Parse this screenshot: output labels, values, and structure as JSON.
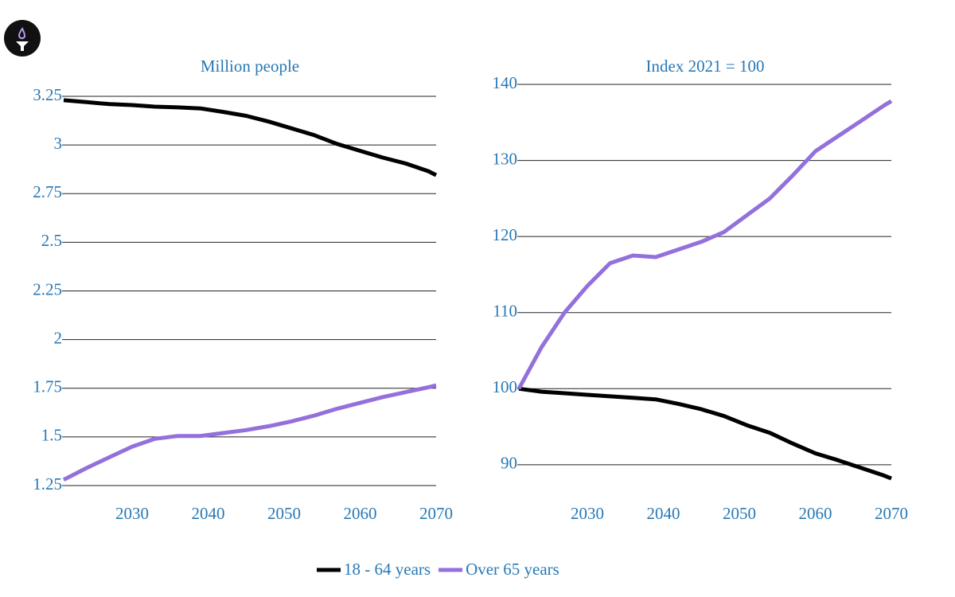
{
  "chart_data": [
    {
      "type": "line",
      "title": "Million people",
      "x": [
        2021,
        2024,
        2027,
        2030,
        2033,
        2036,
        2039,
        2042,
        2045,
        2048,
        2051,
        2054,
        2057,
        2060,
        2063,
        2066,
        2069,
        2070
      ],
      "series": [
        {
          "name": "18 - 64 years",
          "color": "#000000",
          "values": [
            3.23,
            3.22,
            3.21,
            3.205,
            3.197,
            3.193,
            3.188,
            3.17,
            3.15,
            3.12,
            3.085,
            3.05,
            3.005,
            2.97,
            2.935,
            2.905,
            2.865,
            2.845
          ]
        },
        {
          "name": "Over 65 years",
          "color": "#9370db",
          "values": [
            1.28,
            1.34,
            1.395,
            1.45,
            1.49,
            1.505,
            1.505,
            1.52,
            1.535,
            1.555,
            1.58,
            1.61,
            1.645,
            1.675,
            1.705,
            1.73,
            1.755,
            1.765
          ]
        }
      ],
      "xlim": [
        2021,
        2070
      ],
      "xticks": [
        2030,
        2040,
        2050,
        2060,
        2070
      ],
      "ylim": [
        1.25,
        3.25
      ],
      "yticks": [
        1.25,
        1.5,
        1.75,
        2,
        2.25,
        2.5,
        2.75,
        3,
        3.25
      ],
      "grid": true
    },
    {
      "type": "line",
      "title": "Index 2021 = 100",
      "x": [
        2021,
        2024,
        2027,
        2030,
        2033,
        2036,
        2039,
        2042,
        2045,
        2048,
        2051,
        2054,
        2057,
        2060,
        2063,
        2066,
        2069,
        2070
      ],
      "series": [
        {
          "color": "#000000",
          "values": [
            100,
            99.6,
            99.4,
            99.2,
            99.0,
            98.8,
            98.6,
            98.0,
            97.3,
            96.4,
            95.2,
            94.2,
            92.8,
            91.5,
            90.6,
            89.6,
            88.6,
            88.2
          ]
        },
        {
          "color": "#9370db",
          "values": [
            100,
            105.5,
            110,
            113.5,
            116.5,
            117.5,
            117.3,
            118.3,
            119.3,
            120.6,
            122.8,
            125,
            128,
            131.2,
            133.2,
            135.2,
            137.2,
            137.8
          ]
        }
      ],
      "xlim": [
        2021,
        2070
      ],
      "xticks": [
        2030,
        2040,
        2050,
        2060,
        2070
      ],
      "ylim": [
        88,
        140
      ],
      "yticks": [
        90,
        100,
        110,
        120,
        130,
        140
      ],
      "grid": true
    }
  ]
}
